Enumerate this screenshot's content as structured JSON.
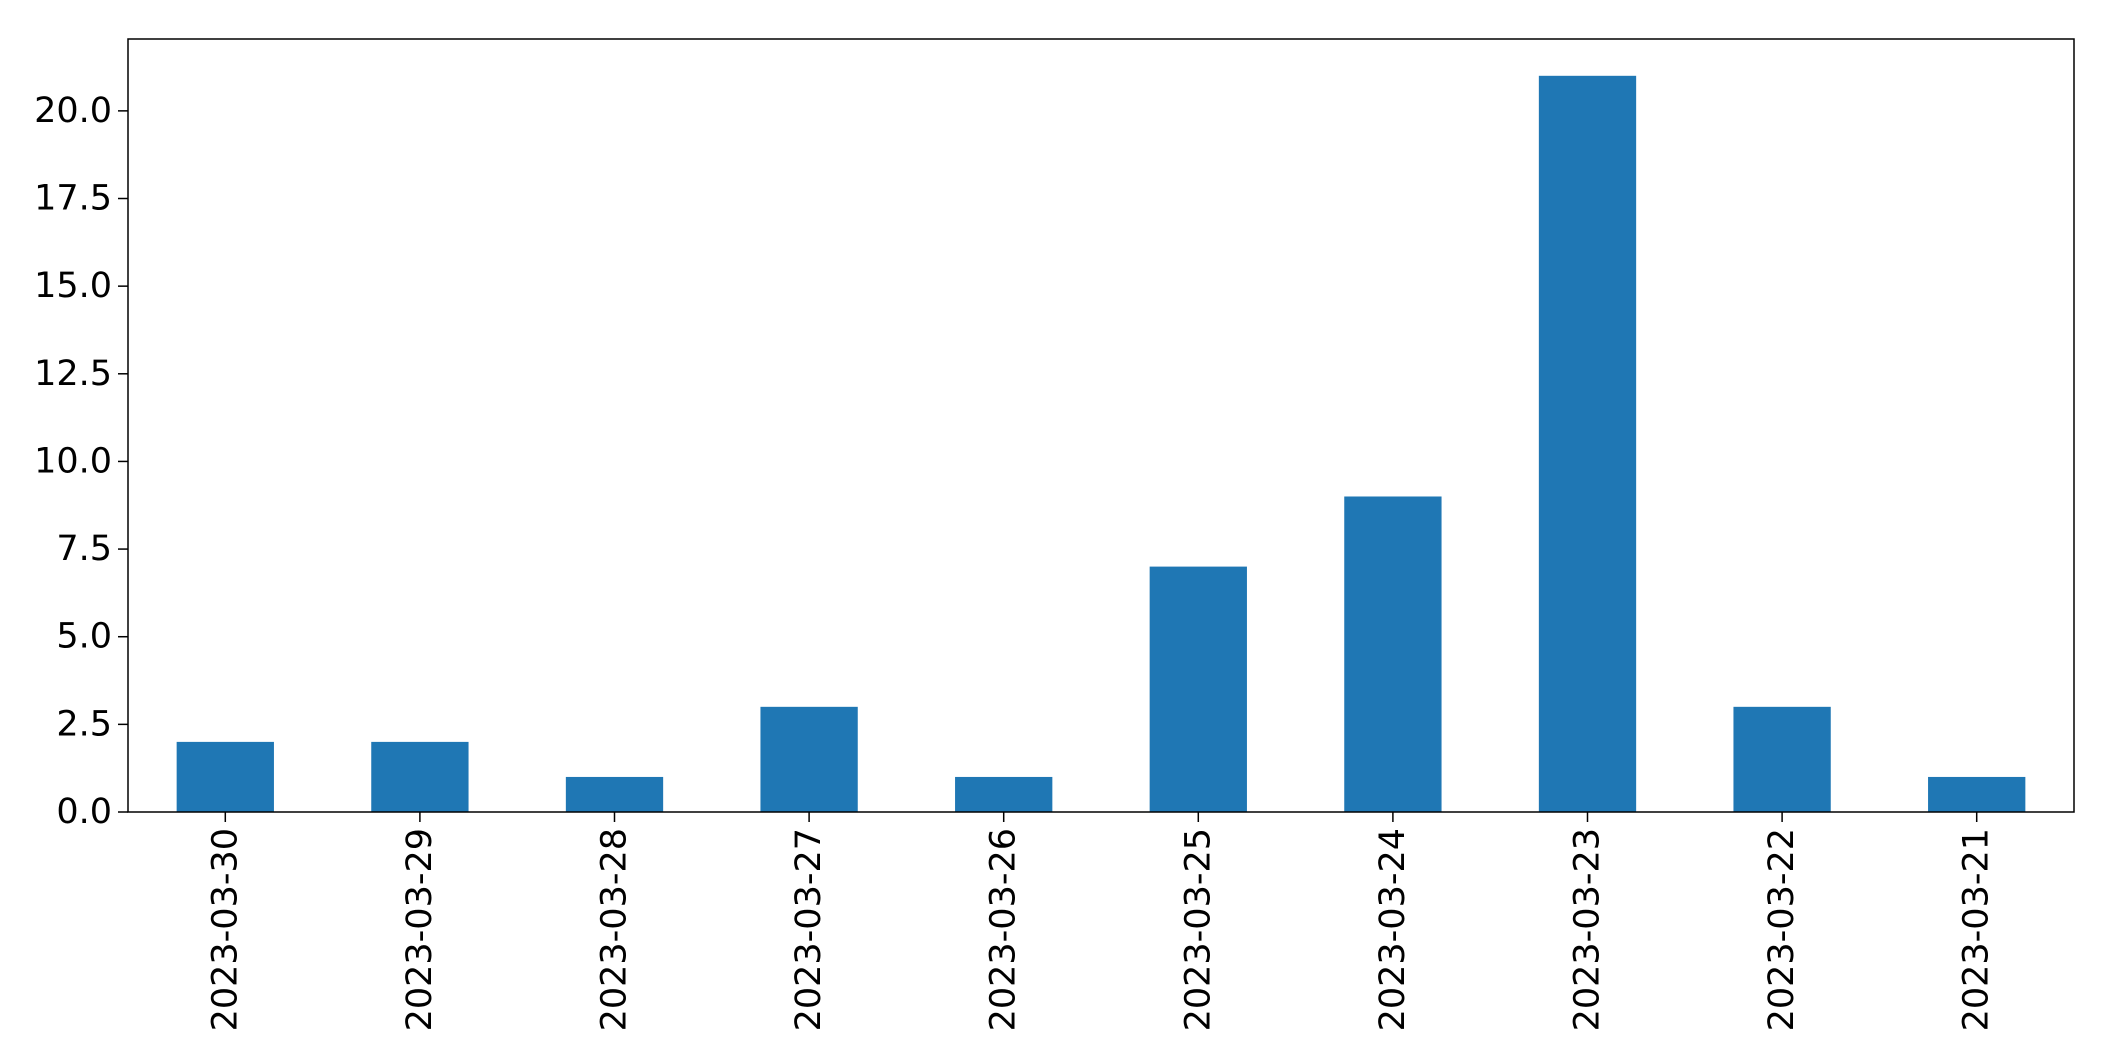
{
  "chart_data": {
    "type": "bar",
    "title": "",
    "xlabel": "",
    "ylabel": "",
    "categories": [
      "2023-03-30",
      "2023-03-29",
      "2023-03-28",
      "2023-03-27",
      "2023-03-26",
      "2023-03-25",
      "2023-03-24",
      "2023-03-23",
      "2023-03-22",
      "2023-03-21"
    ],
    "values": [
      2,
      2,
      1,
      3,
      1,
      7,
      9,
      21,
      3,
      1
    ],
    "ylim": [
      0,
      22.05
    ],
    "yticks": [
      "0.0",
      "2.5",
      "5.0",
      "7.5",
      "10.0",
      "12.5",
      "15.0",
      "17.5",
      "20.0"
    ],
    "bar_color": "#1f77b4",
    "grid": false,
    "legend": "none"
  }
}
